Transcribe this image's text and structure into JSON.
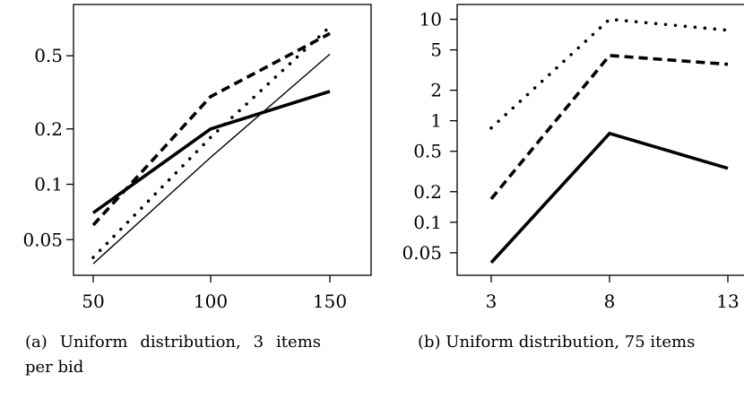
{
  "chart_data": [
    {
      "type": "line",
      "title": "",
      "xlabel": "",
      "ylabel": "",
      "x": [
        50,
        100,
        150
      ],
      "x_tick_labels": [
        "50",
        "100",
        "150"
      ],
      "y_scale": "log",
      "y_ticks": [
        0.05,
        0.1,
        0.2,
        0.5
      ],
      "y_tick_labels": [
        "0.05",
        "0.1",
        "0.2",
        "0.5"
      ],
      "ylim": [
        0.032,
        0.95
      ],
      "grid": false,
      "series": [
        {
          "style": "thick-solid",
          "values": [
            0.07,
            0.2,
            0.32
          ]
        },
        {
          "style": "thick-dashed",
          "values": [
            0.06,
            0.3,
            0.66
          ]
        },
        {
          "style": "dotted",
          "values": [
            0.04,
            0.18,
            0.72
          ]
        },
        {
          "style": "thin-solid",
          "values": [
            0.037,
            0.14,
            0.51
          ]
        }
      ],
      "caption": "(a) Uniform distribution, 3 items per bid"
    },
    {
      "type": "line",
      "title": "",
      "xlabel": "",
      "ylabel": "",
      "x": [
        3,
        8,
        13
      ],
      "x_tick_labels": [
        "3",
        "8",
        "13"
      ],
      "y_scale": "log",
      "y_ticks": [
        0.05,
        0.1,
        0.2,
        0.5,
        1,
        2,
        5,
        10
      ],
      "y_tick_labels": [
        "0.05",
        "0.1",
        "0.2",
        "0.5",
        "1",
        "2",
        "5",
        "10"
      ],
      "ylim": [
        0.03,
        14
      ],
      "grid": false,
      "series": [
        {
          "style": "thick-solid",
          "values": [
            0.04,
            0.75,
            0.34
          ]
        },
        {
          "style": "thick-dashed",
          "values": [
            0.17,
            4.4,
            3.6
          ]
        },
        {
          "style": "dotted",
          "values": [
            0.85,
            10,
            7.8
          ]
        }
      ],
      "caption": "(b) Uniform distribution, 75 items"
    }
  ]
}
